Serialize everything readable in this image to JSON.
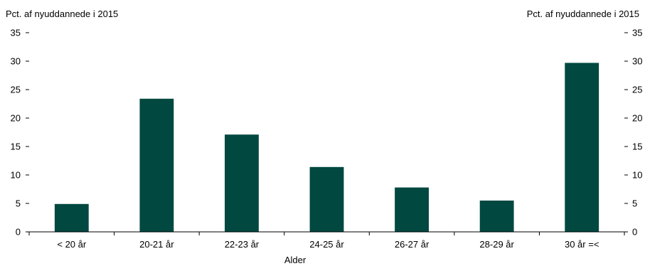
{
  "chart_data": {
    "type": "bar",
    "ylabel_left": "Pct. af nyuddannede i 2015",
    "ylabel_right": "Pct. af nyuddannede i 2015",
    "xlabel": "Alder",
    "ylim": [
      0,
      35
    ],
    "yticks": [
      0,
      5,
      10,
      15,
      20,
      25,
      30,
      35
    ],
    "categories": [
      "< 20 år",
      "20-21 år",
      "22-23 år",
      "24-25 år",
      "26-27 år",
      "28-29 år",
      "30 år =<"
    ],
    "values": [
      4.9,
      23.4,
      17.1,
      11.4,
      7.8,
      5.5,
      29.7
    ],
    "bar_color": "#004840",
    "grid": false,
    "legend": "none"
  }
}
